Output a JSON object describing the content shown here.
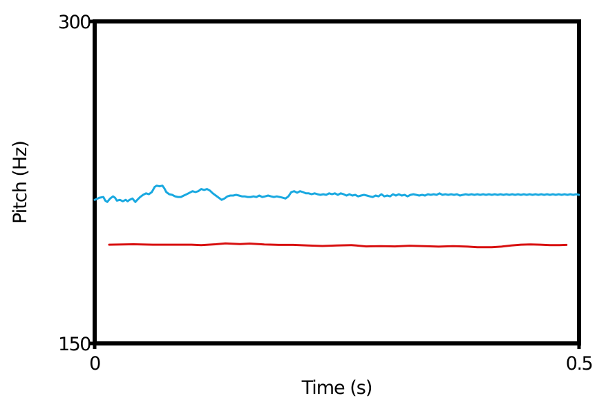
{
  "chart_data": {
    "type": "line",
    "title": "",
    "xlabel": "Time (s)",
    "ylabel": "Pitch (Hz)",
    "xlim": [
      0,
      0.5
    ],
    "ylim": [
      150,
      300
    ],
    "x_tick_labels": [
      "0",
      "0.5"
    ],
    "y_tick_labels": [
      "150",
      "300"
    ],
    "grid": false,
    "series": [
      {
        "color": "#18a8e0",
        "points": [
          [
            0.0,
            216.9
          ],
          [
            0.005,
            217.9
          ],
          [
            0.009,
            218.2
          ],
          [
            0.011,
            216.5
          ],
          [
            0.013,
            215.9
          ],
          [
            0.016,
            217.5
          ],
          [
            0.019,
            218.5
          ],
          [
            0.021,
            217.9
          ],
          [
            0.023,
            216.5
          ],
          [
            0.026,
            216.9
          ],
          [
            0.029,
            216.2
          ],
          [
            0.032,
            216.9
          ],
          [
            0.034,
            216.2
          ],
          [
            0.036,
            216.9
          ],
          [
            0.039,
            217.5
          ],
          [
            0.042,
            215.9
          ],
          [
            0.044,
            216.9
          ],
          [
            0.047,
            218.2
          ],
          [
            0.05,
            219.2
          ],
          [
            0.053,
            219.9
          ],
          [
            0.056,
            219.5
          ],
          [
            0.059,
            220.5
          ],
          [
            0.062,
            222.9
          ],
          [
            0.064,
            223.5
          ],
          [
            0.067,
            223.2
          ],
          [
            0.07,
            223.5
          ],
          [
            0.072,
            222.2
          ],
          [
            0.074,
            220.5
          ],
          [
            0.077,
            219.5
          ],
          [
            0.08,
            219.2
          ],
          [
            0.083,
            218.5
          ],
          [
            0.086,
            218.2
          ],
          [
            0.089,
            218.2
          ],
          [
            0.092,
            218.9
          ],
          [
            0.095,
            219.5
          ],
          [
            0.098,
            220.2
          ],
          [
            0.101,
            220.9
          ],
          [
            0.104,
            220.5
          ],
          [
            0.107,
            220.9
          ],
          [
            0.11,
            221.9
          ],
          [
            0.113,
            221.5
          ],
          [
            0.116,
            221.9
          ],
          [
            0.119,
            221.2
          ],
          [
            0.122,
            219.9
          ],
          [
            0.125,
            218.9
          ],
          [
            0.128,
            217.9
          ],
          [
            0.131,
            216.9
          ],
          [
            0.134,
            217.5
          ],
          [
            0.137,
            218.5
          ],
          [
            0.14,
            218.9
          ],
          [
            0.143,
            218.9
          ],
          [
            0.146,
            219.2
          ],
          [
            0.149,
            218.9
          ],
          [
            0.152,
            218.5
          ],
          [
            0.155,
            218.5
          ],
          [
            0.158,
            218.2
          ],
          [
            0.161,
            218.2
          ],
          [
            0.164,
            218.5
          ],
          [
            0.167,
            218.2
          ],
          [
            0.17,
            218.9
          ],
          [
            0.173,
            218.2
          ],
          [
            0.176,
            218.5
          ],
          [
            0.179,
            218.9
          ],
          [
            0.182,
            218.5
          ],
          [
            0.185,
            218.2
          ],
          [
            0.188,
            218.5
          ],
          [
            0.191,
            218.2
          ],
          [
            0.194,
            217.9
          ],
          [
            0.197,
            217.5
          ],
          [
            0.2,
            218.5
          ],
          [
            0.203,
            220.5
          ],
          [
            0.206,
            220.9
          ],
          [
            0.209,
            220.2
          ],
          [
            0.212,
            220.9
          ],
          [
            0.215,
            220.5
          ],
          [
            0.218,
            219.9
          ],
          [
            0.221,
            219.9
          ],
          [
            0.224,
            219.5
          ],
          [
            0.227,
            219.9
          ],
          [
            0.23,
            219.5
          ],
          [
            0.233,
            219.2
          ],
          [
            0.236,
            219.5
          ],
          [
            0.239,
            219.2
          ],
          [
            0.242,
            219.9
          ],
          [
            0.245,
            219.5
          ],
          [
            0.248,
            219.9
          ],
          [
            0.251,
            219.2
          ],
          [
            0.254,
            219.9
          ],
          [
            0.257,
            219.5
          ],
          [
            0.26,
            218.9
          ],
          [
            0.263,
            219.5
          ],
          [
            0.266,
            218.9
          ],
          [
            0.269,
            219.2
          ],
          [
            0.272,
            218.5
          ],
          [
            0.275,
            218.9
          ],
          [
            0.278,
            219.2
          ],
          [
            0.281,
            218.9
          ],
          [
            0.284,
            218.5
          ],
          [
            0.287,
            218.2
          ],
          [
            0.29,
            218.9
          ],
          [
            0.293,
            218.5
          ],
          [
            0.296,
            219.5
          ],
          [
            0.299,
            218.5
          ],
          [
            0.302,
            218.9
          ],
          [
            0.305,
            218.5
          ],
          [
            0.308,
            219.5
          ],
          [
            0.311,
            218.9
          ],
          [
            0.314,
            219.5
          ],
          [
            0.317,
            218.9
          ],
          [
            0.32,
            219.2
          ],
          [
            0.323,
            218.5
          ],
          [
            0.326,
            219.2
          ],
          [
            0.329,
            219.5
          ],
          [
            0.332,
            219.2
          ],
          [
            0.335,
            218.9
          ],
          [
            0.338,
            219.2
          ],
          [
            0.341,
            218.9
          ],
          [
            0.344,
            219.5
          ],
          [
            0.347,
            219.2
          ],
          [
            0.35,
            219.5
          ],
          [
            0.353,
            219.2
          ],
          [
            0.356,
            219.9
          ],
          [
            0.359,
            219.2
          ],
          [
            0.362,
            219.5
          ],
          [
            0.365,
            219.2
          ],
          [
            0.368,
            219.5
          ],
          [
            0.371,
            219.2
          ],
          [
            0.374,
            219.5
          ],
          [
            0.377,
            218.9
          ],
          [
            0.38,
            219.2
          ],
          [
            0.383,
            219.5
          ],
          [
            0.386,
            219.2
          ],
          [
            0.389,
            219.5
          ],
          [
            0.392,
            219.2
          ],
          [
            0.395,
            219.5
          ],
          [
            0.398,
            219.2
          ],
          [
            0.401,
            219.5
          ],
          [
            0.404,
            219.2
          ],
          [
            0.407,
            219.5
          ],
          [
            0.41,
            219.2
          ],
          [
            0.413,
            219.5
          ],
          [
            0.416,
            219.2
          ],
          [
            0.419,
            219.5
          ],
          [
            0.422,
            219.2
          ],
          [
            0.425,
            219.5
          ],
          [
            0.428,
            219.2
          ],
          [
            0.431,
            219.5
          ],
          [
            0.434,
            219.2
          ],
          [
            0.437,
            219.5
          ],
          [
            0.44,
            219.2
          ],
          [
            0.443,
            219.5
          ],
          [
            0.446,
            219.2
          ],
          [
            0.449,
            219.5
          ],
          [
            0.452,
            219.2
          ],
          [
            0.455,
            219.5
          ],
          [
            0.458,
            219.2
          ],
          [
            0.461,
            219.5
          ],
          [
            0.464,
            219.2
          ],
          [
            0.467,
            219.5
          ],
          [
            0.47,
            219.2
          ],
          [
            0.473,
            219.5
          ],
          [
            0.476,
            219.2
          ],
          [
            0.479,
            219.5
          ],
          [
            0.482,
            219.2
          ],
          [
            0.485,
            219.5
          ],
          [
            0.488,
            219.2
          ],
          [
            0.491,
            219.5
          ],
          [
            0.494,
            219.2
          ],
          [
            0.497,
            219.5
          ],
          [
            0.5,
            219.2
          ]
        ]
      },
      {
        "color": "#d81010",
        "points": [
          [
            0.015,
            196.0
          ],
          [
            0.04,
            196.2
          ],
          [
            0.06,
            196.0
          ],
          [
            0.08,
            196.0
          ],
          [
            0.1,
            196.0
          ],
          [
            0.11,
            195.8
          ],
          [
            0.125,
            196.2
          ],
          [
            0.135,
            196.6
          ],
          [
            0.15,
            196.3
          ],
          [
            0.16,
            196.5
          ],
          [
            0.175,
            196.1
          ],
          [
            0.19,
            195.9
          ],
          [
            0.205,
            195.9
          ],
          [
            0.22,
            195.6
          ],
          [
            0.235,
            195.4
          ],
          [
            0.25,
            195.6
          ],
          [
            0.265,
            195.8
          ],
          [
            0.27,
            195.6
          ],
          [
            0.28,
            195.2
          ],
          [
            0.295,
            195.3
          ],
          [
            0.31,
            195.2
          ],
          [
            0.325,
            195.5
          ],
          [
            0.34,
            195.3
          ],
          [
            0.355,
            195.1
          ],
          [
            0.37,
            195.3
          ],
          [
            0.385,
            195.1
          ],
          [
            0.395,
            194.8
          ],
          [
            0.41,
            194.8
          ],
          [
            0.42,
            195.1
          ],
          [
            0.43,
            195.6
          ],
          [
            0.44,
            196.0
          ],
          [
            0.45,
            196.1
          ],
          [
            0.46,
            196.0
          ],
          [
            0.47,
            195.8
          ],
          [
            0.48,
            195.8
          ],
          [
            0.487,
            195.9
          ]
        ]
      }
    ]
  }
}
